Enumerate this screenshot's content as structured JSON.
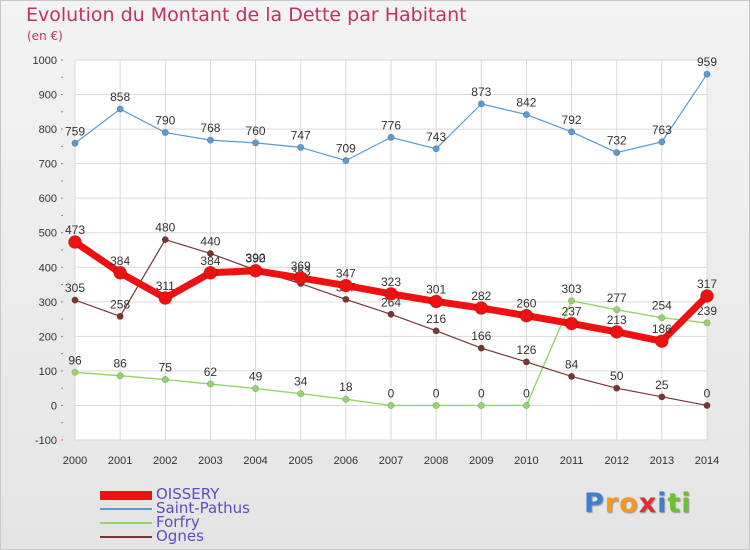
{
  "title": "Evolution du Montant de la Dette par Habitant",
  "subtitle": "(en €)",
  "logo": {
    "text": "Proxiti",
    "letters": [
      "P",
      "r",
      "o",
      "x",
      "i",
      "t",
      "i"
    ],
    "colors": [
      "#3f7fd0",
      "#f39a1b",
      "#f39a1b",
      "#d9312f",
      "#3f7fd0",
      "#6dbf3a",
      "#6dbf3a"
    ]
  },
  "chart_data": {
    "type": "line",
    "title": "Evolution du Montant de la Dette par Habitant",
    "ylabel": "(en €)",
    "xlabel": "",
    "x": [
      "2000",
      "2001",
      "2002",
      "2003",
      "2004",
      "2005",
      "2006",
      "2007",
      "2008",
      "2009",
      "2010",
      "2011",
      "2012",
      "2013",
      "2014"
    ],
    "ylim": [
      -100,
      1000
    ],
    "yticks": [
      -100,
      0,
      100,
      200,
      300,
      400,
      500,
      600,
      700,
      800,
      900,
      1000
    ],
    "grid": true,
    "legend_position": "bottom-left",
    "series": [
      {
        "name": "Saint-Pathus",
        "color": "#5a9bd0",
        "values": [
          759,
          858,
          790,
          768,
          760,
          747,
          709,
          776,
          743,
          873,
          842,
          792,
          732,
          763,
          959
        ]
      },
      {
        "name": "Forfry",
        "color": "#95d46a",
        "values": [
          96,
          86,
          75,
          62,
          49,
          34,
          18,
          0,
          0,
          0,
          0,
          303,
          277,
          254,
          239
        ]
      },
      {
        "name": "Ognes",
        "color": "#7a3535",
        "values": [
          305,
          258,
          480,
          440,
          392,
          353,
          307,
          264,
          216,
          166,
          126,
          84,
          50,
          25,
          0
        ]
      },
      {
        "name": "OISSERY",
        "color": "#ee1111",
        "values": [
          473,
          384,
          311,
          384,
          390,
          369,
          347,
          323,
          301,
          282,
          260,
          237,
          213,
          186,
          317
        ]
      }
    ],
    "legend": [
      "OISSERY",
      "Saint-Pathus",
      "Forfry",
      "Ognes"
    ]
  }
}
